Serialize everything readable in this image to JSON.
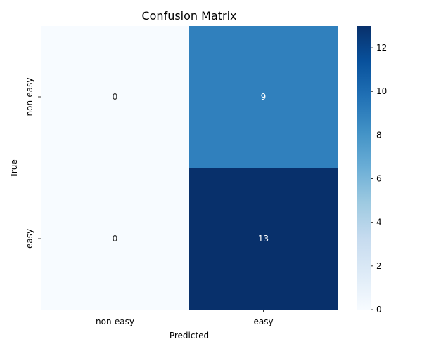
{
  "chart_data": {
    "type": "heatmap",
    "title": "Confusion Matrix",
    "xlabel": "Predicted",
    "ylabel": "True",
    "x_categories": [
      "non-easy",
      "easy"
    ],
    "y_categories": [
      "non-easy",
      "easy"
    ],
    "values": [
      [
        0,
        9
      ],
      [
        0,
        13
      ]
    ],
    "colorbar": {
      "min": 0,
      "max": 13,
      "ticks": [
        "0",
        "2",
        "4",
        "6",
        "8",
        "10",
        "12"
      ],
      "colormap": "Blues"
    },
    "grid": false
  }
}
